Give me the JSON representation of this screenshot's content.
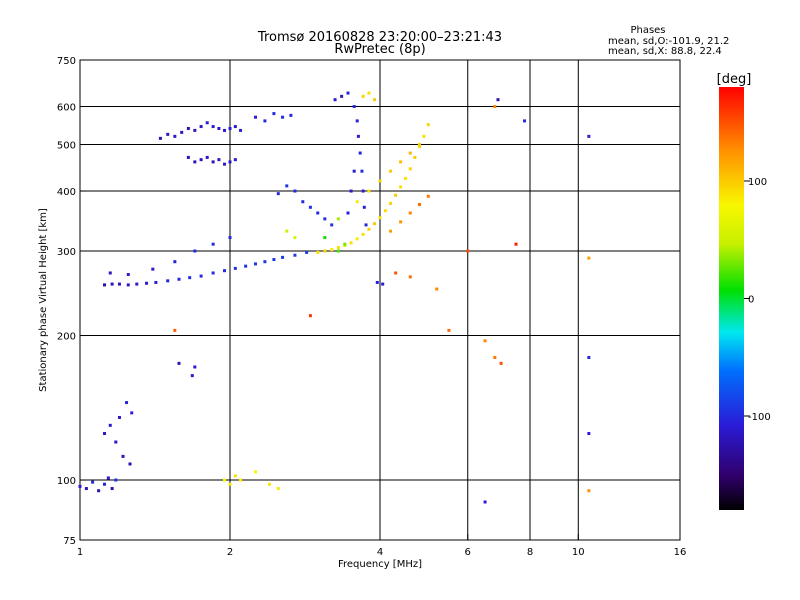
{
  "chart_data": {
    "type": "scatter",
    "title": "Tromsø 20160828 23:20:00–23:21:43",
    "subtitle": "RwPretec (8p)",
    "xlabel": "Frequency [MHz]",
    "ylabel": "Stationary phase Virtual Height [km]",
    "x_scale": "log",
    "y_scale": "log",
    "xlim": [
      1,
      16
    ],
    "ylim": [
      75,
      750
    ],
    "x_ticks": [
      1,
      2,
      4,
      6,
      8,
      10,
      16
    ],
    "x_tick_labels": [
      "1",
      "2",
      "4",
      "6",
      "8",
      "10",
      "16"
    ],
    "y_ticks": [
      75,
      100,
      200,
      300,
      400,
      500,
      600,
      750
    ],
    "y_tick_labels": [
      "75",
      "100",
      "200",
      "300",
      "400",
      "500",
      "600",
      "750"
    ],
    "grid": true,
    "phase_info": {
      "heading": "Phases",
      "line_o": "mean, sd,O:-101.9, 21.2",
      "line_x": "mean, sd,X: 88.8, 22.4"
    },
    "colorbar": {
      "label": "[deg]",
      "range": [
        -180,
        180
      ],
      "ticks": [
        100,
        0,
        -100
      ],
      "tick_labels": [
        "100",
        "0",
        "-100"
      ]
    },
    "series": [
      {
        "points": [
          [
            1.0,
            97,
            -110
          ],
          [
            1.03,
            96,
            -115
          ],
          [
            1.06,
            99,
            -100
          ],
          [
            1.09,
            95,
            -120
          ],
          [
            1.12,
            98,
            -105
          ],
          [
            1.14,
            101,
            -110
          ],
          [
            1.16,
            96,
            -125
          ],
          [
            1.18,
            100,
            -100
          ],
          [
            1.12,
            255,
            -125
          ],
          [
            1.16,
            256,
            -120
          ],
          [
            1.2,
            256,
            -118
          ],
          [
            1.25,
            255,
            -115
          ],
          [
            1.3,
            256,
            -112
          ],
          [
            1.36,
            257,
            -110
          ],
          [
            1.42,
            258,
            -108
          ],
          [
            1.5,
            260,
            -105
          ],
          [
            1.58,
            262,
            -103
          ],
          [
            1.66,
            264,
            -100
          ],
          [
            1.75,
            266,
            -100
          ],
          [
            1.85,
            270,
            -98
          ],
          [
            1.95,
            273,
            -98
          ],
          [
            2.05,
            276,
            -96
          ],
          [
            2.15,
            279,
            -95
          ],
          [
            2.25,
            282,
            -94
          ],
          [
            2.35,
            285,
            -93
          ],
          [
            2.45,
            288,
            -92
          ],
          [
            2.55,
            291,
            -92
          ],
          [
            2.7,
            294,
            -90
          ],
          [
            2.85,
            298,
            -92
          ],
          [
            1.15,
            270,
            -115
          ],
          [
            1.25,
            268,
            -110
          ],
          [
            1.4,
            275,
            -108
          ],
          [
            1.55,
            285,
            -105
          ],
          [
            1.7,
            300,
            -100
          ],
          [
            1.85,
            310,
            -100
          ],
          [
            2.0,
            320,
            -100
          ],
          [
            1.45,
            515,
            -120
          ],
          [
            1.5,
            525,
            -118
          ],
          [
            1.55,
            520,
            -115
          ],
          [
            1.6,
            530,
            -118
          ],
          [
            1.65,
            540,
            -120
          ],
          [
            1.7,
            535,
            -115
          ],
          [
            1.75,
            545,
            -112
          ],
          [
            1.8,
            555,
            -110
          ],
          [
            1.85,
            545,
            -108
          ],
          [
            1.9,
            540,
            -112
          ],
          [
            1.95,
            535,
            -110
          ],
          [
            2.0,
            540,
            -108
          ],
          [
            2.05,
            545,
            -110
          ],
          [
            2.1,
            535,
            -105
          ],
          [
            1.65,
            470,
            -120
          ],
          [
            1.7,
            460,
            -118
          ],
          [
            1.75,
            465,
            -115
          ],
          [
            1.8,
            470,
            -112
          ],
          [
            1.85,
            460,
            -118
          ],
          [
            1.9,
            465,
            -115
          ],
          [
            1.95,
            455,
            -110
          ],
          [
            2.0,
            460,
            -112
          ],
          [
            2.05,
            465,
            -110
          ],
          [
            2.25,
            570,
            -105
          ],
          [
            2.35,
            560,
            -100
          ],
          [
            2.45,
            580,
            -100
          ],
          [
            2.55,
            570,
            -98
          ],
          [
            2.65,
            575,
            -100
          ],
          [
            2.5,
            395,
            -100
          ],
          [
            2.6,
            410,
            -95
          ],
          [
            2.7,
            400,
            -98
          ],
          [
            2.8,
            380,
            -100
          ],
          [
            2.9,
            370,
            -95
          ],
          [
            3.0,
            360,
            -100
          ],
          [
            3.1,
            350,
            -98
          ],
          [
            3.2,
            340,
            -95
          ],
          [
            3.25,
            620,
            -110
          ],
          [
            3.35,
            630,
            -115
          ],
          [
            3.45,
            640,
            -105
          ],
          [
            3.55,
            600,
            -100
          ],
          [
            3.6,
            560,
            -105
          ],
          [
            3.62,
            520,
            -110
          ],
          [
            3.65,
            480,
            -105
          ],
          [
            3.68,
            440,
            -100
          ],
          [
            3.7,
            400,
            -110
          ],
          [
            3.72,
            370,
            -105
          ],
          [
            3.75,
            340,
            -100
          ],
          [
            3.55,
            440,
            -108
          ],
          [
            3.5,
            400,
            -112
          ],
          [
            3.45,
            360,
            -105
          ],
          [
            3.95,
            258,
            -105
          ],
          [
            4.05,
            256,
            -110
          ],
          [
            1.12,
            125,
            -115
          ],
          [
            1.15,
            130,
            -110
          ],
          [
            1.18,
            120,
            -118
          ],
          [
            1.2,
            135,
            -112
          ],
          [
            1.24,
            145,
            -105
          ],
          [
            1.27,
            138,
            -108
          ],
          [
            1.22,
            112,
            -120
          ],
          [
            1.26,
            108,
            -125
          ],
          [
            1.68,
            165,
            -115
          ],
          [
            1.7,
            172,
            -110
          ],
          [
            1.58,
            175,
            -125
          ],
          [
            10.5,
            125,
            -110
          ],
          [
            10.5,
            180,
            -100
          ],
          [
            10.5,
            520,
            -110
          ],
          [
            7.8,
            560,
            -100
          ],
          [
            6.9,
            620,
            -120
          ],
          [
            6.5,
            90,
            -110
          ]
        ]
      },
      {
        "points": [
          [
            3.0,
            298,
            90
          ],
          [
            3.1,
            300,
            95
          ],
          [
            3.2,
            302,
            85
          ],
          [
            3.3,
            305,
            90
          ],
          [
            3.4,
            308,
            88
          ],
          [
            3.5,
            312,
            92
          ],
          [
            3.6,
            318,
            85
          ],
          [
            3.7,
            325,
            90
          ],
          [
            3.8,
            333,
            95
          ],
          [
            3.9,
            342,
            100
          ],
          [
            4.0,
            352,
            88
          ],
          [
            4.1,
            364,
            92
          ],
          [
            4.2,
            377,
            95
          ],
          [
            4.3,
            392,
            100
          ],
          [
            4.4,
            408,
            90
          ],
          [
            4.5,
            425,
            88
          ],
          [
            4.6,
            445,
            95
          ],
          [
            4.7,
            470,
            100
          ],
          [
            4.8,
            495,
            92
          ],
          [
            4.9,
            520,
            90
          ],
          [
            5.0,
            550,
            95
          ],
          [
            3.6,
            380,
            85
          ],
          [
            3.8,
            400,
            90
          ],
          [
            4.0,
            420,
            95
          ],
          [
            4.2,
            440,
            100
          ],
          [
            4.4,
            460,
            105
          ],
          [
            4.6,
            480,
            110
          ],
          [
            4.8,
            500,
            100
          ],
          [
            4.2,
            330,
            120
          ],
          [
            4.4,
            345,
            125
          ],
          [
            4.6,
            360,
            130
          ],
          [
            4.8,
            375,
            140
          ],
          [
            5.0,
            390,
            135
          ],
          [
            3.8,
            640,
            90
          ],
          [
            3.7,
            630,
            95
          ],
          [
            3.9,
            620,
            100
          ],
          [
            1.95,
            100,
            80
          ],
          [
            2.0,
            98,
            85
          ],
          [
            2.05,
            102,
            90
          ],
          [
            2.1,
            100,
            85
          ],
          [
            2.25,
            104,
            80
          ],
          [
            2.4,
            98,
            88
          ],
          [
            2.5,
            96,
            85
          ],
          [
            3.3,
            300,
            20
          ],
          [
            3.4,
            310,
            30
          ],
          [
            3.1,
            320,
            10
          ],
          [
            3.3,
            350,
            40
          ],
          [
            2.6,
            330,
            50
          ],
          [
            2.7,
            320,
            60
          ],
          [
            4.3,
            270,
            150
          ],
          [
            4.6,
            265,
            140
          ],
          [
            5.2,
            250,
            130
          ],
          [
            5.5,
            205,
            140
          ],
          [
            6.8,
            180,
            135
          ],
          [
            7.0,
            175,
            150
          ],
          [
            6.5,
            195,
            130
          ],
          [
            10.5,
            290,
            120
          ],
          [
            10.5,
            95,
            125
          ],
          [
            2.9,
            220,
            160
          ],
          [
            1.55,
            205,
            145
          ],
          [
            6.8,
            600,
            130
          ],
          [
            7.5,
            310,
            170
          ],
          [
            6.0,
            300,
            150
          ]
        ]
      }
    ]
  }
}
